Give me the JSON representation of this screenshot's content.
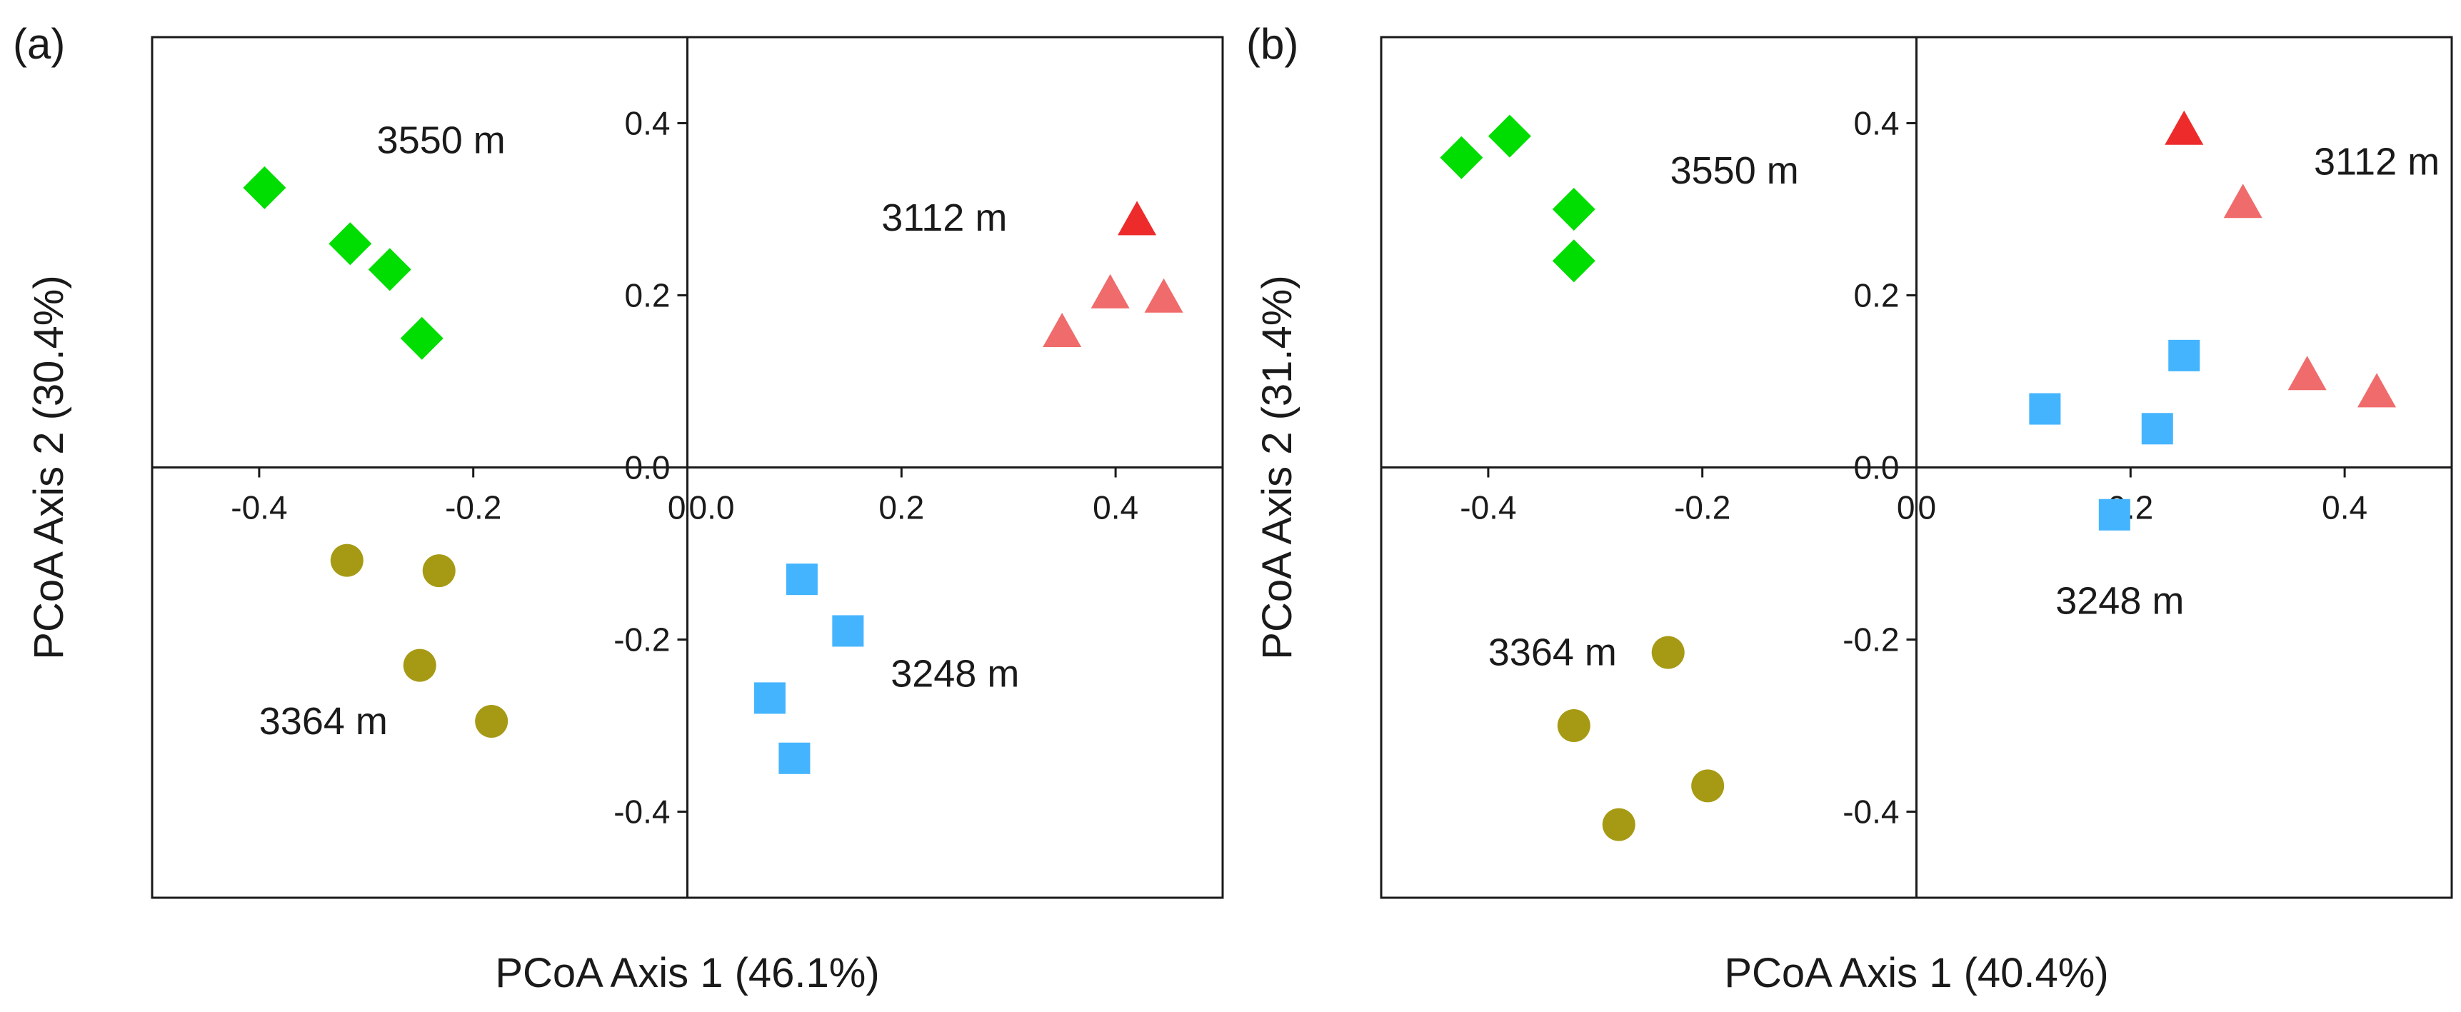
{
  "chart_data": [
    {
      "type": "scatter",
      "panel_label": "(a)",
      "xlabel": "PCoA Axis 1 (46.1%)",
      "ylabel": "PCoA Axis 2 (30.4%)",
      "xlim": [
        -0.5,
        0.5
      ],
      "ylim": [
        -0.5,
        0.5
      ],
      "x_ticks": [
        "-0.4",
        "-0.2",
        "0",
        "0.0",
        "0.2",
        "0.4"
      ],
      "y_ticks": [
        "0.4",
        "0.2",
        "0.0",
        "-0.2",
        "-0.4"
      ],
      "x_tick_values": [
        -0.4,
        -0.2,
        -0.004,
        0.004,
        0.2,
        0.4
      ],
      "y_tick_values": [
        0.4,
        0.2,
        0.0,
        -0.2,
        -0.4
      ],
      "series": [
        {
          "name": "3550 m",
          "marker": "diamond",
          "color": "#00dd00",
          "x": [
            -0.395,
            -0.315,
            -0.278,
            -0.248
          ],
          "y": [
            0.325,
            0.26,
            0.23,
            0.15
          ],
          "label_at": [
            -0.23,
            0.38
          ]
        },
        {
          "name": "3112 m",
          "marker": "triangle",
          "color": "#f06b6b",
          "highlight_color": "#ee2b2b",
          "highlight_index": 0,
          "x": [
            0.42,
            0.395,
            0.445,
            0.35
          ],
          "y": [
            0.285,
            0.2,
            0.195,
            0.155
          ],
          "label_at": [
            0.24,
            0.29
          ]
        },
        {
          "name": "3364 m",
          "marker": "circle",
          "color": "#a69a14",
          "x": [
            -0.318,
            -0.232,
            -0.25,
            -0.183
          ],
          "y": [
            -0.108,
            -0.12,
            -0.23,
            -0.295
          ],
          "label_at": [
            -0.34,
            -0.295
          ]
        },
        {
          "name": "3248 m",
          "marker": "square",
          "color": "#44b4ff",
          "x": [
            0.107,
            0.15,
            0.077,
            0.1
          ],
          "y": [
            -0.13,
            -0.19,
            -0.268,
            -0.338
          ],
          "label_at": [
            0.25,
            -0.24
          ]
        }
      ]
    },
    {
      "type": "scatter",
      "panel_label": "(b)",
      "xlabel": "PCoA Axis 1 (40.4%)",
      "ylabel": "PCoA Axis 2 (31.4%)",
      "xlim": [
        -0.5,
        0.5
      ],
      "ylim": [
        -0.5,
        0.5
      ],
      "x_ticks": [
        "-0.4",
        "-0.2",
        "0",
        "0",
        "0.2",
        "0.4"
      ],
      "y_ticks": [
        "0.4",
        "0.2",
        "0.0",
        "-0.2",
        "-0.4"
      ],
      "x_tick_values": [
        -0.4,
        -0.2,
        -0.004,
        0.004,
        0.2,
        0.4
      ],
      "y_tick_values": [
        0.4,
        0.2,
        0.0,
        -0.2,
        -0.4
      ],
      "series": [
        {
          "name": "3550 m",
          "marker": "diamond",
          "color": "#00dd00",
          "x": [
            -0.425,
            -0.38,
            -0.32,
            -0.32
          ],
          "y": [
            0.36,
            0.385,
            0.3,
            0.24
          ],
          "label_at": [
            -0.17,
            0.345
          ]
        },
        {
          "name": "3112 m",
          "marker": "triangle",
          "color": "#f06b6b",
          "highlight_color": "#ee2b2b",
          "highlight_index": 0,
          "x": [
            0.25,
            0.305,
            0.365,
            0.43
          ],
          "y": [
            0.39,
            0.305,
            0.105,
            0.085
          ],
          "label_at": [
            0.43,
            0.355
          ]
        },
        {
          "name": "3364 m",
          "marker": "circle",
          "color": "#a69a14",
          "x": [
            -0.232,
            -0.32,
            -0.195,
            -0.278
          ],
          "y": [
            -0.215,
            -0.3,
            -0.37,
            -0.415
          ],
          "label_at": [
            -0.34,
            -0.215
          ]
        },
        {
          "name": "3248 m",
          "marker": "square",
          "color": "#44b4ff",
          "x": [
            0.12,
            0.25,
            0.225,
            0.185
          ],
          "y": [
            0.068,
            0.13,
            0.045,
            -0.055
          ],
          "label_at": [
            0.19,
            -0.155
          ]
        }
      ]
    }
  ]
}
